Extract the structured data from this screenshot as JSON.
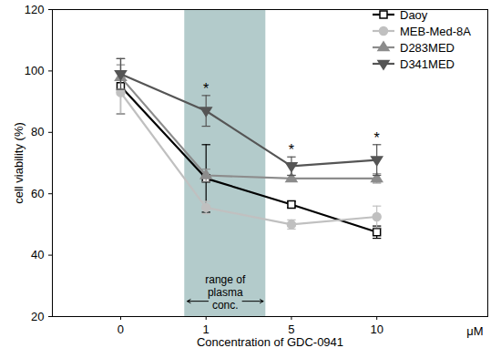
{
  "chart_data": {
    "type": "line",
    "x_label": "Concentration of GDC-0941",
    "x_unit_label": "μM",
    "y_label": "cell viability (%)",
    "categories": [
      "0",
      "1",
      "5",
      "10"
    ],
    "ylim": [
      20,
      120
    ],
    "yticks": [
      20,
      40,
      60,
      80,
      100,
      120
    ],
    "grid": false,
    "legend": "top-right",
    "series": [
      {
        "name": "Daoy",
        "color": "#000000",
        "marker": "square-open",
        "values": [
          95,
          65,
          56.5,
          47.5
        ],
        "errors": [
          9,
          11,
          1,
          2
        ]
      },
      {
        "name": "MEB-Med-8A",
        "color": "#c0c0c0",
        "marker": "circle",
        "values": [
          93,
          55.5,
          50,
          52.5
        ],
        "errors": [
          7,
          2,
          1.5,
          3.5
        ]
      },
      {
        "name": "D283MED",
        "color": "#8c8c8c",
        "marker": "triangle",
        "values": [
          98,
          66,
          65,
          65
        ],
        "errors": [
          4,
          2,
          1,
          1.5
        ]
      },
      {
        "name": "D341MED",
        "color": "#555555",
        "marker": "triangle-down",
        "values": [
          99,
          87,
          69,
          71
        ],
        "errors": [
          5,
          5,
          3,
          5
        ]
      }
    ],
    "shaded_region": {
      "from": 0.75,
      "to": 1.7,
      "color": "#a6c2c2",
      "label": "range of\nplasma\nconc."
    },
    "annotations": [
      {
        "category": "1",
        "text": "*"
      },
      {
        "category": "5",
        "text": "*"
      },
      {
        "category": "10",
        "text": "*"
      }
    ]
  }
}
